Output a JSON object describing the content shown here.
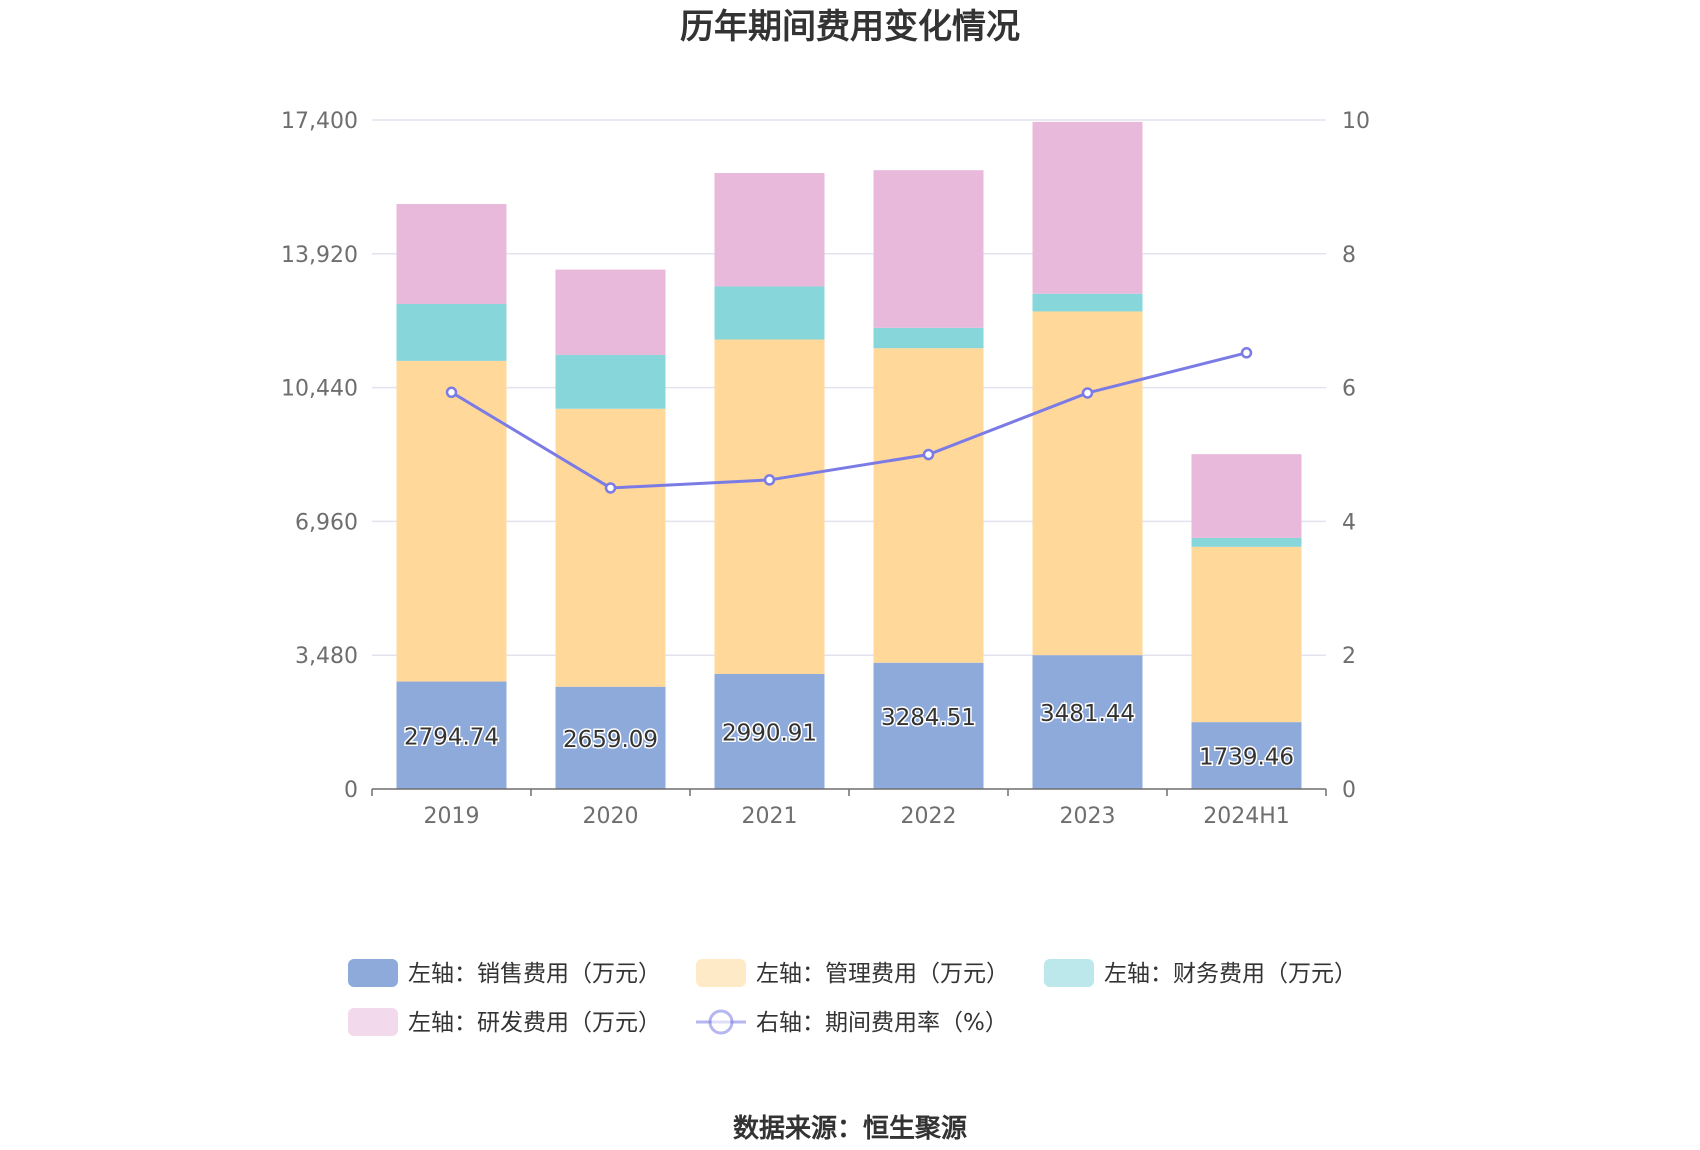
{
  "chart_data": {
    "type": "bar",
    "title": "历年期间费用变化情况",
    "source": "数据来源：恒生聚源",
    "categories": [
      "2019",
      "2020",
      "2021",
      "2022",
      "2023",
      "2024H1"
    ],
    "left_axis": {
      "min": 0,
      "max": 17400,
      "ticks": [
        "0",
        "3,480",
        "6,960",
        "10,440",
        "13,920",
        "17,400"
      ]
    },
    "right_axis": {
      "min": 0,
      "max": 10,
      "ticks": [
        "0",
        "2",
        "4",
        "6",
        "8",
        "10"
      ]
    },
    "grid": true,
    "legend_position": "bottom",
    "stacked": true,
    "series": [
      {
        "name": "左轴：销售费用（万元）",
        "axis": "left",
        "type": "bar",
        "color": "#8eaadb",
        "values": [
          2794.74,
          2659.09,
          2990.91,
          3284.51,
          3481.44,
          1739.46
        ],
        "labels": [
          "2794.74",
          "2659.09",
          "2990.91",
          "3284.51",
          "3481.44",
          "1739.46"
        ]
      },
      {
        "name": "左轴：管理费用（万元）",
        "axis": "left",
        "type": "bar",
        "color": "#ffd89a",
        "values": [
          8340,
          7230,
          8700,
          8180,
          8940,
          4560
        ]
      },
      {
        "name": "左轴：财务费用（万元）",
        "axis": "left",
        "type": "bar",
        "color": "#87d6da",
        "values": [
          1480,
          1400,
          1380,
          530,
          460,
          230
        ]
      },
      {
        "name": "左轴：研发费用（万元）",
        "axis": "left",
        "type": "bar",
        "color": "#e8b9da",
        "values": [
          2600,
          2220,
          2950,
          4100,
          4470,
          2180
        ]
      },
      {
        "name": "右轴：期间费用率（%）",
        "axis": "right",
        "type": "line",
        "color": "#7b7be6",
        "values": [
          5.93,
          4.5,
          4.62,
          5.0,
          5.92,
          6.52
        ]
      }
    ]
  }
}
